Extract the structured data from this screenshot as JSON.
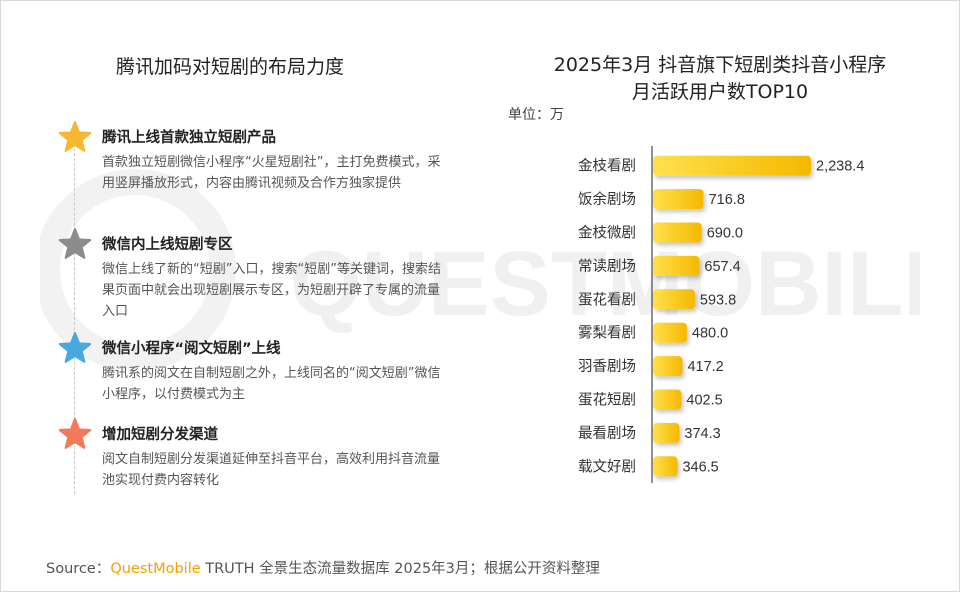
{
  "left": {
    "title": "腾讯加码对短剧的布局力度",
    "items": [
      {
        "title": "腾讯上线首款独立短剧产品",
        "desc": "首款独立短剧微信小程序“火星短剧社”，主打免费模式，采用竖屏播放形式，内容由腾讯视频及合作方独家提供",
        "color": "#f7b733"
      },
      {
        "title": "微信内上线短剧专区",
        "desc": "微信上线了新的“短剧”入口，搜索“短剧”等关键词，搜索结果页面中就会出现短剧展示专区，为短剧开辟了专属的流量入口",
        "color": "#8c8c8c"
      },
      {
        "title": "微信小程序“阅文短剧”上线",
        "desc": "腾讯系的阅文在自制短剧之外，上线同名的“阅文短剧”微信小程序，以付费模式为主",
        "color": "#4aa8e0"
      },
      {
        "title": "增加短剧分发渠道",
        "desc": "阅文自制短剧分发渠道延伸至抖音平台，高效利用抖音流量池实现付费内容转化",
        "color": "#f07a5a"
      }
    ]
  },
  "right": {
    "title_line1": "2025年3月 抖音旗下短剧类抖音小程序",
    "title_line2": "月活跃用户数TOP10",
    "unit": "单位：万"
  },
  "chart_data": {
    "type": "bar",
    "orientation": "horizontal",
    "title": "2025年3月 抖音旗下短剧类抖音小程序月活跃用户数TOP10",
    "unit": "单位：万",
    "categories": [
      "金枝看剧",
      "饭余剧场",
      "金枝微剧",
      "常读剧场",
      "蛋花看剧",
      "雾梨看剧",
      "羽香剧场",
      "蛋花短剧",
      "最看剧场",
      "载文好剧"
    ],
    "values": [
      2238.4,
      716.8,
      690.0,
      657.4,
      593.8,
      480.0,
      417.2,
      402.5,
      374.3,
      346.5
    ],
    "value_labels": [
      "2,238.4",
      "716.8",
      "690.0",
      "657.4",
      "593.8",
      "480.0",
      "417.2",
      "402.5",
      "374.3",
      "346.5"
    ],
    "xlim": [
      0,
      2238.4
    ],
    "bar_color_start": "#ffe14d",
    "bar_color_end": "#f5b800",
    "grid": false
  },
  "source": {
    "prefix": "Source：",
    "brand": "QuestMobile",
    "suffix": " TRUTH 全景生态流量数据库 2025年3月；根据公开资料整理"
  },
  "watermark": {
    "text": "QUESTMOBILE",
    "color": "#f0f0f0"
  }
}
